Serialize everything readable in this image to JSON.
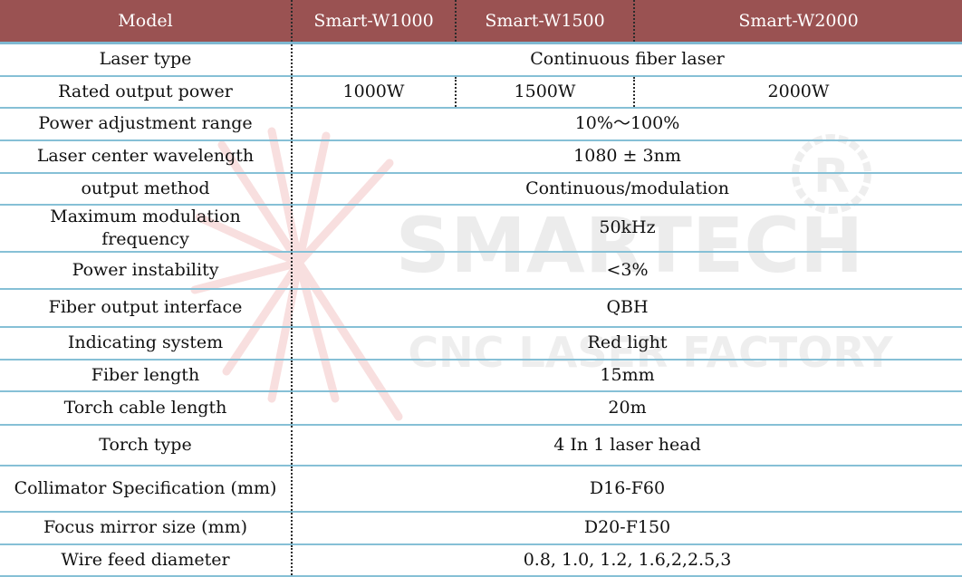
{
  "header": {
    "col_model": "Model",
    "models": [
      "Smart-W1000",
      "Smart-W1500",
      "Smart-W2000"
    ]
  },
  "rows": [
    {
      "label": "Laser type",
      "value": "Continuous fiber laser"
    },
    {
      "label": "Rated output power",
      "values": [
        "1000W",
        "1500W",
        "2000W"
      ]
    },
    {
      "label": "Power adjustment range",
      "value": "10%～100%"
    },
    {
      "label": "Laser center wavelength",
      "value": "1080 ± 3nm"
    },
    {
      "label": "output method",
      "value": "Continuous/modulation"
    },
    {
      "label": "Maximum modulation frequency",
      "value": "50kHz"
    },
    {
      "label": "Power instability",
      "value": "<3%"
    },
    {
      "label": "Fiber output interface",
      "value": "QBH"
    },
    {
      "label": "Indicating system",
      "value": "Red light"
    },
    {
      "label": "Fiber length",
      "value": "15mm"
    },
    {
      "label": "Torch cable length",
      "value": "20m"
    },
    {
      "label": "Torch type",
      "value": "4 In 1 laser head"
    },
    {
      "label": "Collimator Specification (mm)",
      "value": "D16-F60"
    },
    {
      "label": "Focus mirror size (mm)",
      "value": "D20-F150"
    },
    {
      "label": "Wire feed diameter",
      "value": "0.8, 1.0, 1.2, 1.6,2,2.5,3"
    }
  ],
  "watermark": {
    "brand": "SMARTECH",
    "tagline": "CNC LASER FACTORY",
    "registered": "R"
  },
  "colors": {
    "header_bg": "#9a5252",
    "header_text": "#ffffff",
    "row_rule": "#86c0d6",
    "text": "#111111",
    "watermark": "#bdbdbd"
  }
}
